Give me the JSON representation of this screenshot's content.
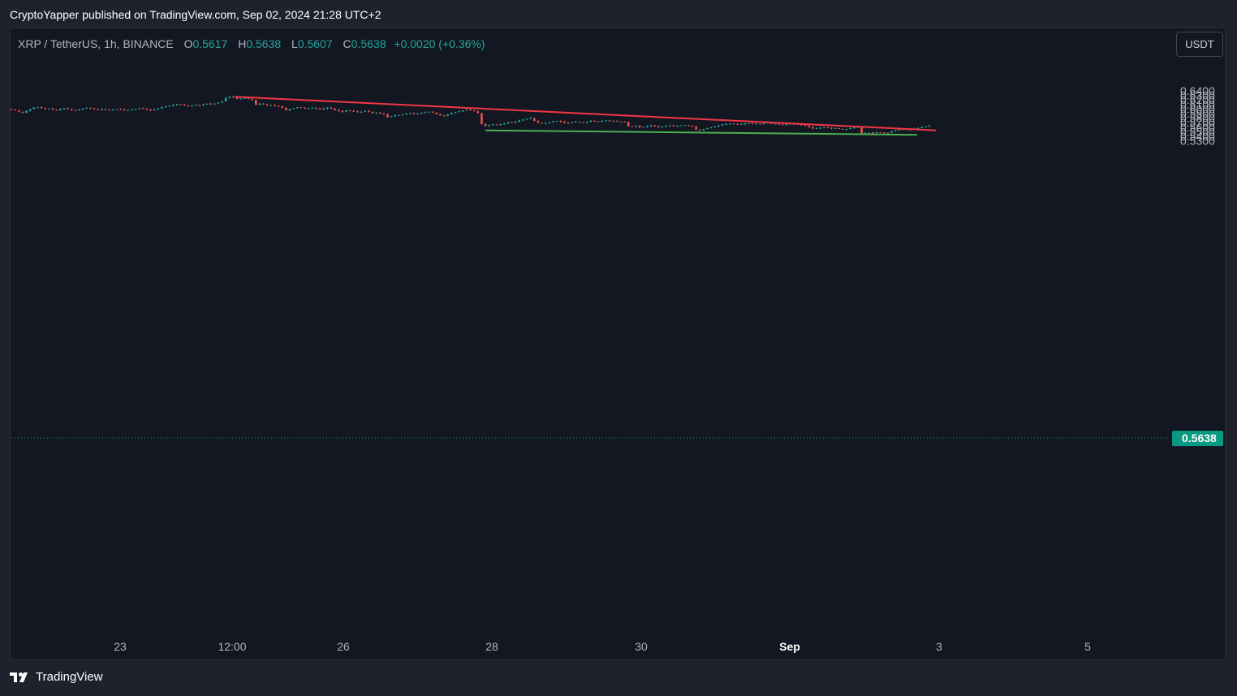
{
  "header": {
    "publisher_line": "CryptoYapper published on TradingView.com, Sep 02, 2024 21:28 UTC+2"
  },
  "legend": {
    "symbol": "XRP / TetherUS, 1h, BINANCE",
    "o_label": "O",
    "o": "0.5617",
    "h_label": "H",
    "h": "0.5638",
    "l_label": "L",
    "l": "0.5607",
    "c_label": "C",
    "c": "0.5638",
    "change": "+0.0020 (+0.36%)"
  },
  "currency_button": "USDT",
  "footer": {
    "brand": "TradingView"
  },
  "colors": {
    "up": "#26a69a",
    "down": "#ef5350",
    "resistance": "#f23645",
    "support": "#4caf50",
    "price_tag": "#089981",
    "background": "#131722"
  },
  "chart_data": {
    "type": "candlestick",
    "symbol": "XRP / TetherUS",
    "interval": "1h",
    "exchange": "BINANCE",
    "last_price": "0.5638",
    "yaxis": {
      "ticks": [
        "0.6400",
        "0.6300",
        "0.6200",
        "0.6100",
        "0.6000",
        "0.5900",
        "0.5800",
        "0.5700",
        "0.5600",
        "0.5500",
        "0.5400",
        "0.5300"
      ],
      "position": "right"
    },
    "xaxis": {
      "ticks": [
        "23",
        "12:00",
        "26",
        "28",
        "30",
        "Sep",
        "3",
        "5"
      ],
      "bold": [
        "Sep"
      ]
    },
    "closes": [
      0.599,
      0.597,
      0.594,
      0.592,
      0.596,
      0.6,
      0.603,
      0.604,
      0.602,
      0.6,
      0.601,
      0.599,
      0.597,
      0.6,
      0.602,
      0.6,
      0.598,
      0.597,
      0.599,
      0.601,
      0.603,
      0.602,
      0.6,
      0.598,
      0.6,
      0.599,
      0.597,
      0.599,
      0.6,
      0.599,
      0.597,
      0.598,
      0.599,
      0.6,
      0.602,
      0.601,
      0.599,
      0.598,
      0.599,
      0.601,
      0.604,
      0.606,
      0.607,
      0.609,
      0.611,
      0.61,
      0.608,
      0.607,
      0.608,
      0.609,
      0.608,
      0.61,
      0.612,
      0.611,
      0.612,
      0.614,
      0.617,
      0.625,
      0.627,
      0.625,
      0.622,
      0.623,
      0.624,
      0.622,
      0.62,
      0.609,
      0.612,
      0.61,
      0.608,
      0.609,
      0.607,
      0.606,
      0.603,
      0.597,
      0.6,
      0.602,
      0.604,
      0.603,
      0.601,
      0.602,
      0.603,
      0.601,
      0.599,
      0.601,
      0.603,
      0.601,
      0.598,
      0.596,
      0.594,
      0.597,
      0.596,
      0.595,
      0.593,
      0.594,
      0.596,
      0.594,
      0.591,
      0.592,
      0.59,
      0.589,
      0.582,
      0.584,
      0.586,
      0.587,
      0.588,
      0.59,
      0.591,
      0.589,
      0.59,
      0.592,
      0.593,
      0.594,
      0.592,
      0.589,
      0.586,
      0.585,
      0.588,
      0.591,
      0.593,
      0.595,
      0.597,
      0.599,
      0.597,
      0.595,
      0.591,
      0.567,
      0.563,
      0.565,
      0.566,
      0.565,
      0.567,
      0.568,
      0.571,
      0.57,
      0.572,
      0.575,
      0.577,
      0.579,
      0.58,
      0.574,
      0.57,
      0.568,
      0.569,
      0.571,
      0.573,
      0.574,
      0.572,
      0.57,
      0.569,
      0.571,
      0.572,
      0.571,
      0.57,
      0.572,
      0.574,
      0.573,
      0.572,
      0.574,
      0.575,
      0.573,
      0.574,
      0.573,
      0.572,
      0.571,
      0.562,
      0.561,
      0.563,
      0.56,
      0.561,
      0.562,
      0.564,
      0.563,
      0.56,
      0.561,
      0.563,
      0.564,
      0.562,
      0.563,
      0.564,
      0.565,
      0.563,
      0.562,
      0.555,
      0.553,
      0.556,
      0.558,
      0.56,
      0.562,
      0.564,
      0.566,
      0.567,
      0.568,
      0.567,
      0.566,
      0.567,
      0.568,
      0.569,
      0.567,
      0.568,
      0.567,
      0.571,
      0.569,
      0.567,
      0.568,
      0.566,
      0.565,
      0.567,
      0.568,
      0.566,
      0.567,
      0.565,
      0.563,
      0.56,
      0.557,
      0.558,
      0.559,
      0.56,
      0.559,
      0.557,
      0.558,
      0.556,
      0.555,
      0.556,
      0.558,
      0.56,
      0.561,
      0.545,
      0.547,
      0.548,
      0.547,
      0.549,
      0.548,
      0.546,
      0.548,
      0.551,
      0.553,
      0.555,
      0.556,
      0.554,
      0.555,
      0.557,
      0.558,
      0.56,
      0.562,
      0.5638
    ],
    "drawings": [
      {
        "type": "trendline",
        "role": "resistance",
        "from": {
          "x": "12:00",
          "y": 0.627
        },
        "to": {
          "x": "3",
          "y": 0.553
        }
      },
      {
        "type": "trendline",
        "role": "support",
        "from": {
          "x": "28",
          "y": 0.553
        },
        "to": {
          "x": "3",
          "y": 0.5432
        }
      }
    ]
  }
}
